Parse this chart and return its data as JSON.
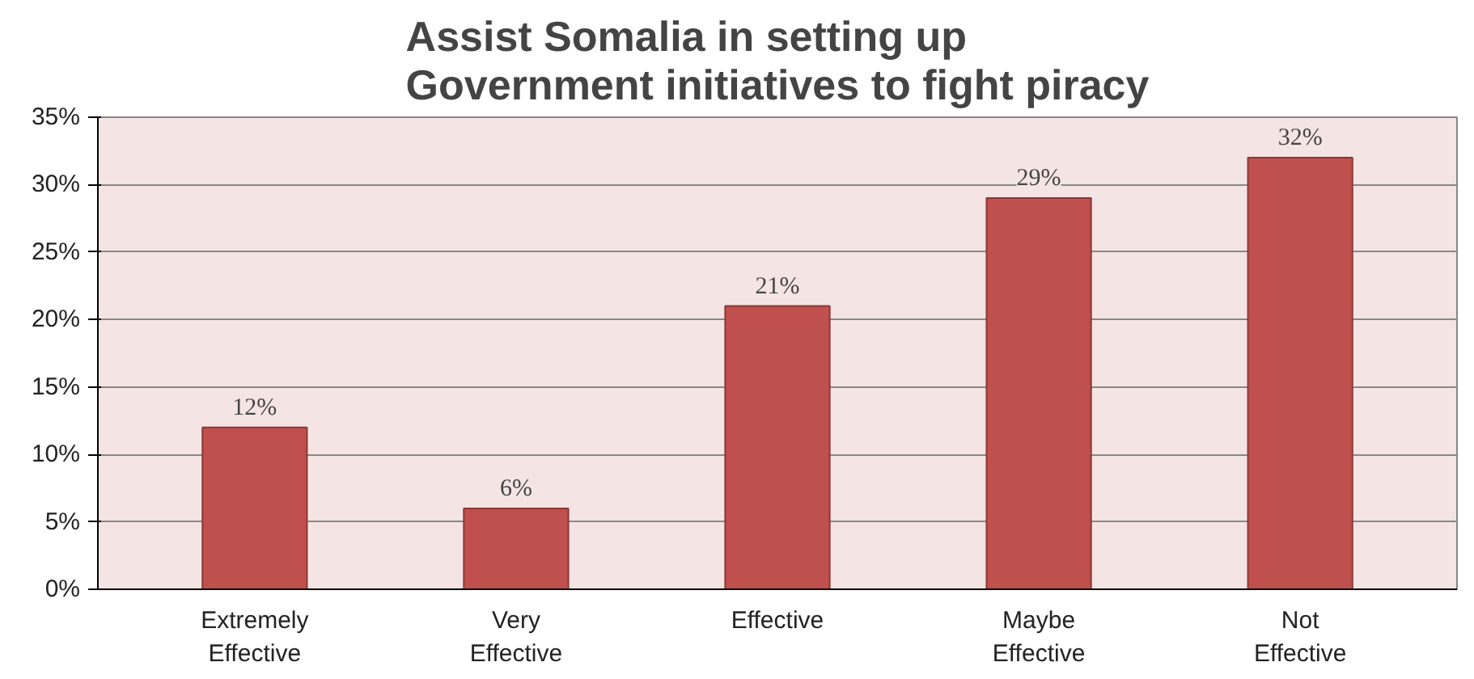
{
  "chart_data": {
    "type": "bar",
    "title": "Assist Somalia in setting up Government initiatives to fight piracy",
    "categories": [
      "Extremely Effective",
      "Very Effective",
      "Effective",
      "Maybe Effective",
      "Not Effective"
    ],
    "values": [
      12,
      6,
      21,
      29,
      32
    ],
    "value_labels": [
      "12%",
      "6%",
      "21%",
      "29%",
      "32%"
    ],
    "color": "#c0504d",
    "ylim": [
      0,
      35
    ],
    "yticks": [
      {
        "value": 0,
        "label": "0%"
      },
      {
        "value": 5,
        "label": "5%"
      },
      {
        "value": 10,
        "label": "10%"
      },
      {
        "value": 15,
        "label": "15%"
      },
      {
        "value": 20,
        "label": "20%"
      },
      {
        "value": 25,
        "label": "25%"
      },
      {
        "value": 30,
        "label": "30%"
      },
      {
        "value": 35,
        "label": "35%"
      }
    ],
    "grid": "y"
  }
}
